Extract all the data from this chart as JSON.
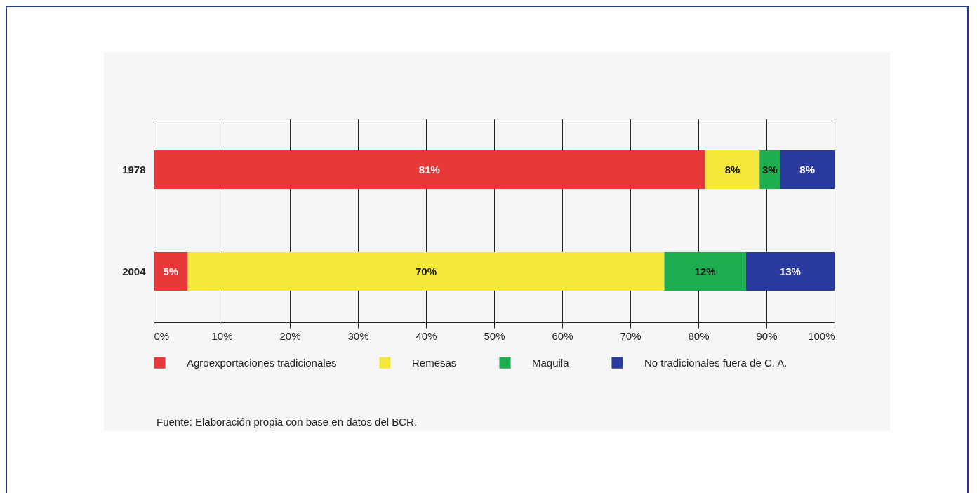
{
  "chart_data": {
    "type": "bar",
    "orientation": "horizontal",
    "stacked": true,
    "categories": [
      "1978",
      "2004"
    ],
    "series": [
      {
        "name": "Agroexportaciones tradicionales",
        "color": "#e8393a",
        "values": [
          81,
          5
        ],
        "value_labels": [
          "81%",
          "5%"
        ]
      },
      {
        "name": "Remesas",
        "color": "#f5e83a",
        "values": [
          8,
          70
        ],
        "value_labels": [
          "8%",
          "70%"
        ]
      },
      {
        "name": "Maquila",
        "color": "#1fae4f",
        "values": [
          3,
          12
        ],
        "value_labels": [
          "3%",
          "12%"
        ]
      },
      {
        "name": "No tradicionales fuera de C. A.",
        "color": "#2b3a9f",
        "values": [
          8,
          13
        ],
        "value_labels": [
          "8%",
          "13%"
        ]
      }
    ],
    "xlim": [
      0,
      100
    ],
    "xticks": [
      {
        "value": 0,
        "label": "0%"
      },
      {
        "value": 10,
        "label": "10%"
      },
      {
        "value": 20,
        "label": "20%"
      },
      {
        "value": 30,
        "label": "30%"
      },
      {
        "value": 40,
        "label": "40%"
      },
      {
        "value": 50,
        "label": "50%"
      },
      {
        "value": 60,
        "label": "60%"
      },
      {
        "value": 70,
        "label": "70%"
      },
      {
        "value": 80,
        "label": "80%"
      },
      {
        "value": 90,
        "label": "90%"
      },
      {
        "value": 100,
        "label": "100%"
      }
    ],
    "grid": "x",
    "legend": "bottom",
    "annotations": [
      "Fuente: Elaboración propia con base en datos del BCR."
    ]
  }
}
